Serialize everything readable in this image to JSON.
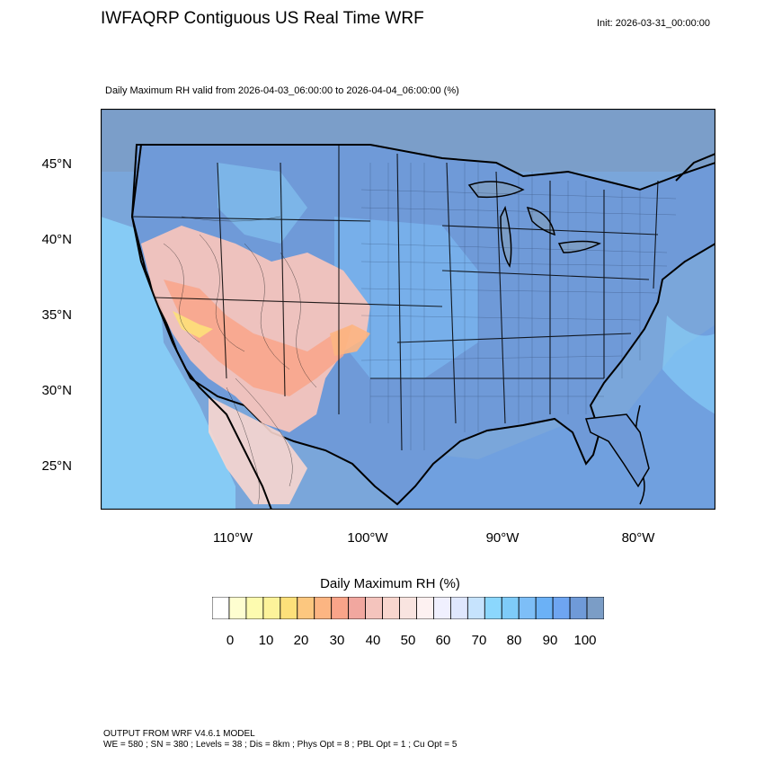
{
  "header": {
    "title": "IWFAQRP Contiguous US Real Time WRF",
    "init": "Init: 2026-03-31_00:00:00",
    "subtitle": "Daily Maximum RH valid from 2026-04-03_06:00:00 to 2026-04-04_06:00:00   (%)"
  },
  "map": {
    "lat_labels": [
      "45°N",
      "40°N",
      "35°N",
      "30°N",
      "25°N"
    ],
    "lon_labels": [
      "110°W",
      "100°W",
      "90°W",
      "80°W"
    ],
    "region": "Contiguous United States",
    "regions_shown": {
      "dry_southwest": "low RH (20-50%) over the Great Basin, Desert Southwest and southern High Plains",
      "moist_east": "high RH (80-100%) over the Midwest, East and Gulf Coast",
      "ocean": "high RH over Pacific, Gulf of Mexico and Atlantic"
    }
  },
  "colorbar": {
    "title": "Daily Maximum RH  (%)",
    "tick_labels": [
      "0",
      "10",
      "20",
      "30",
      "40",
      "50",
      "60",
      "70",
      "80",
      "90",
      "100"
    ],
    "colors": [
      "#ffffff",
      "#fefed0",
      "#fdfbaf",
      "#fcf39a",
      "#fde07a",
      "#fcc77f",
      "#fcb582",
      "#f9a489",
      "#f1a79f",
      "#f4c4bd",
      "#f8d6ce",
      "#f9e4e0",
      "#fdf1f1",
      "#f0f0fe",
      "#dfe7fd",
      "#c6e3fd",
      "#8bd7fd",
      "#7ecbf8",
      "#7dbef7",
      "#6bb1f6",
      "#6ea5f1",
      "#6f9ad8",
      "#7b9dc6"
    ]
  },
  "footer": {
    "line1": "OUTPUT FROM WRF V4.6.1 MODEL",
    "line2": "WE = 580 ; SN = 380 ; Levels = 38 ; Dis = 8km ; Phys Opt = 8 ; PBL Opt = 1 ; Cu Opt = 5"
  }
}
